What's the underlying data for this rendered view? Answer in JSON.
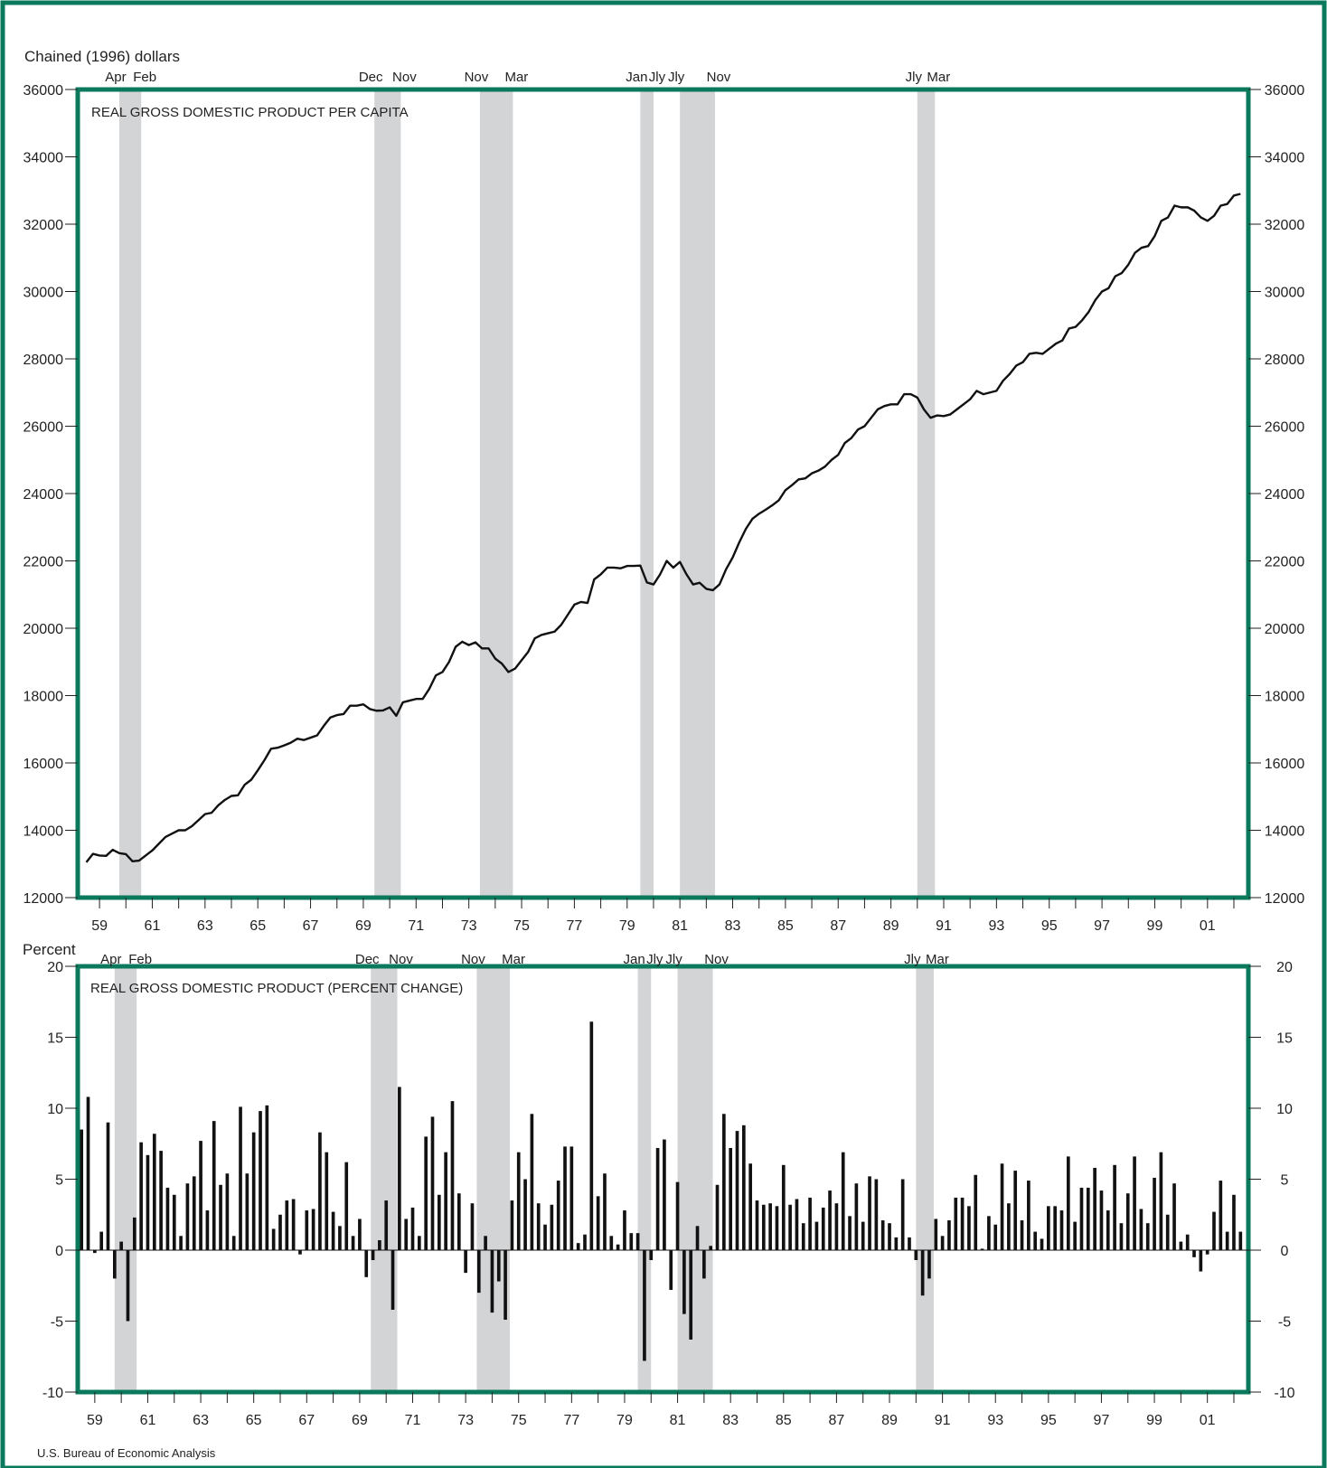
{
  "source": "U.S. Bureau of Economic Analysis",
  "colors": {
    "frame": "#0b7a5c",
    "recession": "#d3d4d6",
    "line": "#111111",
    "bar": "#111111"
  },
  "x_ticks": [
    "59",
    "61",
    "63",
    "65",
    "67",
    "69",
    "71",
    "73",
    "75",
    "77",
    "79",
    "81",
    "83",
    "85",
    "87",
    "89",
    "91",
    "93",
    "95",
    "97",
    "99",
    "01"
  ],
  "recessions": [
    {
      "start": 1960.25,
      "end": 1961.08,
      "start_label": "Apr",
      "end_label": "Feb"
    },
    {
      "start": 1969.92,
      "end": 1970.92,
      "start_label": "Dec",
      "end_label": "Nov"
    },
    {
      "start": 1973.92,
      "end": 1975.17,
      "start_label": "Nov",
      "end_label": "Mar"
    },
    {
      "start": 1980.0,
      "end": 1980.5,
      "start_label": "Jan",
      "end_label": "Jly"
    },
    {
      "start": 1981.5,
      "end": 1982.83,
      "start_label": "Jly",
      "end_label": "Nov"
    },
    {
      "start": 1990.5,
      "end": 1991.17,
      "start_label": "Jly",
      "end_label": "Mar"
    }
  ],
  "chart_data": [
    {
      "type": "line",
      "title": "REAL GROSS DOMESTIC PRODUCT PER CAPITA",
      "units_label": "Chained (1996) dollars",
      "y_ticks": [
        "12000",
        "14000",
        "16000",
        "18000",
        "20000",
        "22000",
        "24000",
        "26000",
        "28000",
        "30000",
        "32000",
        "34000",
        "36000"
      ],
      "ylim": [
        12000,
        36000
      ],
      "xlim": [
        1959.0,
        2002.75
      ],
      "x": [
        1959.0,
        1959.25,
        1959.5,
        1959.75,
        1960.0,
        1960.25,
        1960.5,
        1960.75,
        1961.0,
        1961.25,
        1961.5,
        1961.75,
        1962.0,
        1962.25,
        1962.5,
        1962.75,
        1963.0,
        1963.25,
        1963.5,
        1963.75,
        1964.0,
        1964.25,
        1964.5,
        1964.75,
        1965.0,
        1965.25,
        1965.5,
        1965.75,
        1966.0,
        1966.25,
        1966.5,
        1966.75,
        1967.0,
        1967.25,
        1967.5,
        1967.75,
        1968.0,
        1968.25,
        1968.5,
        1968.75,
        1969.0,
        1969.25,
        1969.5,
        1969.75,
        1970.0,
        1970.25,
        1970.5,
        1970.75,
        1971.0,
        1971.25,
        1971.5,
        1971.75,
        1972.0,
        1972.25,
        1972.5,
        1972.75,
        1973.0,
        1973.25,
        1973.5,
        1973.75,
        1974.0,
        1974.25,
        1974.5,
        1974.75,
        1975.0,
        1975.25,
        1975.5,
        1975.75,
        1976.0,
        1976.25,
        1976.5,
        1976.75,
        1977.0,
        1977.25,
        1977.5,
        1977.75,
        1978.0,
        1978.25,
        1978.5,
        1978.75,
        1979.0,
        1979.25,
        1979.5,
        1979.75,
        1980.0,
        1980.25,
        1980.5,
        1980.75,
        1981.0,
        1981.25,
        1981.5,
        1981.75,
        1982.0,
        1982.25,
        1982.5,
        1982.75,
        1983.0,
        1983.25,
        1983.5,
        1983.75,
        1984.0,
        1984.25,
        1984.5,
        1984.75,
        1985.0,
        1985.25,
        1985.5,
        1985.75,
        1986.0,
        1986.25,
        1986.5,
        1986.75,
        1987.0,
        1987.25,
        1987.5,
        1987.75,
        1988.0,
        1988.25,
        1988.5,
        1988.75,
        1989.0,
        1989.25,
        1989.5,
        1989.75,
        1990.0,
        1990.25,
        1990.5,
        1990.75,
        1991.0,
        1991.25,
        1991.5,
        1991.75,
        1992.0,
        1992.25,
        1992.5,
        1992.75,
        1993.0,
        1993.25,
        1993.5,
        1993.75,
        1994.0,
        1994.25,
        1994.5,
        1994.75,
        1995.0,
        1995.25,
        1995.5,
        1995.75,
        1996.0,
        1996.25,
        1996.5,
        1996.75,
        1997.0,
        1997.25,
        1997.5,
        1997.75,
        1998.0,
        1998.25,
        1998.5,
        1998.75,
        1999.0,
        1999.25,
        1999.5,
        1999.75,
        2000.0,
        2000.25,
        2000.5,
        2000.75,
        2001.0,
        2001.25,
        2001.5,
        2001.75,
        2002.0,
        2002.25,
        2002.5,
        2002.75
      ],
      "y": [
        13050,
        13300,
        13250,
        13240,
        13420,
        13320,
        13290,
        13080,
        13100,
        13250,
        13400,
        13600,
        13800,
        13900,
        14000,
        14000,
        14120,
        14300,
        14480,
        14520,
        14740,
        14900,
        15020,
        15040,
        15350,
        15500,
        15780,
        16080,
        16420,
        16450,
        16520,
        16600,
        16720,
        16680,
        16750,
        16820,
        17100,
        17350,
        17420,
        17450,
        17700,
        17700,
        17740,
        17600,
        17550,
        17560,
        17650,
        17400,
        17800,
        17850,
        17900,
        17900,
        18200,
        18600,
        18700,
        19000,
        19450,
        19600,
        19500,
        19580,
        19400,
        19400,
        19100,
        18950,
        18700,
        18800,
        19050,
        19300,
        19700,
        19800,
        19850,
        19900,
        20100,
        20400,
        20700,
        20780,
        20750,
        21450,
        21600,
        21800,
        21800,
        21780,
        21850,
        21850,
        21860,
        21360,
        21300,
        21600,
        22000,
        21800,
        21970,
        21600,
        21300,
        21350,
        21170,
        21130,
        21300,
        21750,
        22100,
        22550,
        22950,
        23250,
        23400,
        23520,
        23650,
        23800,
        24100,
        24250,
        24420,
        24450,
        24600,
        24680,
        24800,
        25000,
        25150,
        25500,
        25650,
        25900,
        26000,
        26250,
        26500,
        26600,
        26650,
        26650,
        26950,
        26950,
        26850,
        26500,
        26250,
        26320,
        26300,
        26350,
        26500,
        26650,
        26800,
        27050,
        26950,
        27000,
        27050,
        27350,
        27550,
        27800,
        27900,
        28150,
        28180,
        28150,
        28300,
        28450,
        28550,
        28900,
        28950,
        29150,
        29400,
        29750,
        30000,
        30100,
        30450,
        30550,
        30800,
        31150,
        31300,
        31350,
        31650,
        32100,
        32200,
        32550,
        32500,
        32500,
        32400,
        32200,
        32100,
        32250,
        32550,
        32600,
        32850,
        32900
      ]
    },
    {
      "type": "bar",
      "title": "REAL GROSS DOMESTIC PRODUCT (PERCENT CHANGE)",
      "units_label": "Percent",
      "y_ticks": [
        "-10",
        "-5",
        "0",
        "5",
        "10",
        "15",
        "20"
      ],
      "ylim": [
        -10,
        20
      ],
      "xlim": [
        1959.0,
        2002.75
      ],
      "x": [
        1959.0,
        1959.25,
        1959.5,
        1959.75,
        1960.0,
        1960.25,
        1960.5,
        1960.75,
        1961.0,
        1961.25,
        1961.5,
        1961.75,
        1962.0,
        1962.25,
        1962.5,
        1962.75,
        1963.0,
        1963.25,
        1963.5,
        1963.75,
        1964.0,
        1964.25,
        1964.5,
        1964.75,
        1965.0,
        1965.25,
        1965.5,
        1965.75,
        1966.0,
        1966.25,
        1966.5,
        1966.75,
        1967.0,
        1967.25,
        1967.5,
        1967.75,
        1968.0,
        1968.25,
        1968.5,
        1968.75,
        1969.0,
        1969.25,
        1969.5,
        1969.75,
        1970.0,
        1970.25,
        1970.5,
        1970.75,
        1971.0,
        1971.25,
        1971.5,
        1971.75,
        1972.0,
        1972.25,
        1972.5,
        1972.75,
        1973.0,
        1973.25,
        1973.5,
        1973.75,
        1974.0,
        1974.25,
        1974.5,
        1974.75,
        1975.0,
        1975.25,
        1975.5,
        1975.75,
        1976.0,
        1976.25,
        1976.5,
        1976.75,
        1977.0,
        1977.25,
        1977.5,
        1977.75,
        1978.0,
        1978.25,
        1978.5,
        1978.75,
        1979.0,
        1979.25,
        1979.5,
        1979.75,
        1980.0,
        1980.25,
        1980.5,
        1980.75,
        1981.0,
        1981.25,
        1981.5,
        1981.75,
        1982.0,
        1982.25,
        1982.5,
        1982.75,
        1983.0,
        1983.25,
        1983.5,
        1983.75,
        1984.0,
        1984.25,
        1984.5,
        1984.75,
        1985.0,
        1985.25,
        1985.5,
        1985.75,
        1986.0,
        1986.25,
        1986.5,
        1986.75,
        1987.0,
        1987.25,
        1987.5,
        1987.75,
        1988.0,
        1988.25,
        1988.5,
        1988.75,
        1989.0,
        1989.25,
        1989.5,
        1989.75,
        1990.0,
        1990.25,
        1990.5,
        1990.75,
        1991.0,
        1991.25,
        1991.5,
        1991.75,
        1992.0,
        1992.25,
        1992.5,
        1992.75,
        1993.0,
        1993.25,
        1993.5,
        1993.75,
        1994.0,
        1994.25,
        1994.5,
        1994.75,
        1995.0,
        1995.25,
        1995.5,
        1995.75,
        1996.0,
        1996.25,
        1996.5,
        1996.75,
        1997.0,
        1997.25,
        1997.5,
        1997.75,
        1998.0,
        1998.25,
        1998.5,
        1998.75,
        1999.0,
        1999.25,
        1999.5,
        1999.75,
        2000.0,
        2000.25,
        2000.5,
        2000.75,
        2001.0,
        2001.25,
        2001.5,
        2001.75,
        2002.0,
        2002.25,
        2002.5,
        2002.75
      ],
      "values": [
        8.5,
        10.8,
        -0.2,
        1.3,
        9.0,
        -2.0,
        0.6,
        -5.0,
        2.3,
        7.6,
        6.7,
        8.2,
        7.0,
        4.4,
        3.9,
        1.0,
        4.7,
        5.2,
        7.7,
        2.8,
        9.1,
        4.6,
        5.4,
        1.0,
        10.1,
        5.4,
        8.3,
        9.8,
        10.2,
        1.5,
        2.5,
        3.5,
        3.6,
        -0.3,
        2.8,
        2.9,
        8.3,
        6.9,
        2.7,
        1.7,
        6.2,
        1.0,
        2.2,
        -1.9,
        -0.7,
        0.7,
        3.5,
        -4.2,
        11.5,
        2.2,
        3.0,
        1.0,
        8.0,
        9.4,
        3.9,
        6.9,
        10.5,
        4.0,
        -1.6,
        3.3,
        -3.0,
        1.0,
        -4.4,
        -2.2,
        -4.9,
        3.5,
        6.9,
        5.0,
        9.6,
        3.3,
        1.8,
        3.2,
        4.9,
        7.3,
        7.3,
        0.5,
        1.1,
        16.1,
        3.8,
        5.4,
        1.0,
        0.4,
        2.8,
        1.2,
        1.2,
        -7.8,
        -0.7,
        7.2,
        7.8,
        -2.8,
        4.8,
        -4.5,
        -6.3,
        1.7,
        -2.0,
        0.3,
        4.6,
        9.6,
        7.2,
        8.4,
        8.8,
        6.1,
        3.5,
        3.2,
        3.3,
        3.1,
        6.0,
        3.2,
        3.6,
        1.9,
        3.7,
        2.0,
        3.0,
        4.2,
        3.3,
        6.9,
        2.4,
        4.7,
        2.0,
        5.2,
        5.0,
        2.1,
        1.9,
        0.9,
        5.0,
        0.9,
        -0.7,
        -3.2,
        -2.0,
        2.2,
        1.0,
        2.1,
        3.7,
        3.7,
        3.1,
        5.3,
        0.1,
        2.4,
        1.8,
        6.1,
        3.3,
        5.6,
        2.1,
        4.9,
        1.3,
        0.8,
        3.1,
        3.1,
        2.8,
        6.6,
        2.0,
        4.4,
        4.4,
        5.8,
        4.2,
        2.8,
        6.0,
        1.9,
        4.0,
        6.6,
        2.9,
        1.9,
        5.1,
        6.9,
        2.5,
        4.7,
        0.6,
        1.1,
        -0.5,
        -1.5,
        -0.3,
        2.7,
        4.9,
        1.3,
        3.9,
        1.3
      ]
    }
  ]
}
